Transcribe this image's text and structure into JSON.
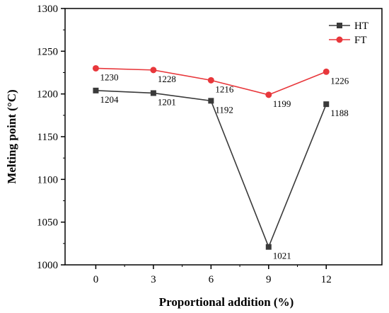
{
  "chart_data": {
    "type": "line",
    "title": "",
    "xlabel": "Proportional addition (%)",
    "ylabel": "Melting point (°C)",
    "x": [
      0,
      3,
      6,
      9,
      12
    ],
    "x_tick_labels": [
      "0",
      "3",
      "6",
      "9",
      "12"
    ],
    "xlim": [
      -1.6,
      14.9
    ],
    "ylim": [
      1000,
      1300
    ],
    "y_ticks": [
      1000,
      1050,
      1100,
      1150,
      1200,
      1250,
      1300
    ],
    "y_tick_labels": [
      "1000",
      "1050",
      "1100",
      "1150",
      "1200",
      "1250",
      "1300"
    ],
    "grid": false,
    "legend_position": "top-right",
    "series": [
      {
        "name": "HT",
        "values": [
          1204,
          1201,
          1192,
          1021,
          1188
        ],
        "data_labels": [
          "1204",
          "1201",
          "1192",
          "1021",
          "1188"
        ],
        "color": "#3a3a3a",
        "marker": "square"
      },
      {
        "name": "FT",
        "values": [
          1230,
          1228,
          1216,
          1199,
          1226
        ],
        "data_labels": [
          "1230",
          "1228",
          "1216",
          "1199",
          "1226"
        ],
        "color": "#e8373b",
        "marker": "circle"
      }
    ]
  }
}
